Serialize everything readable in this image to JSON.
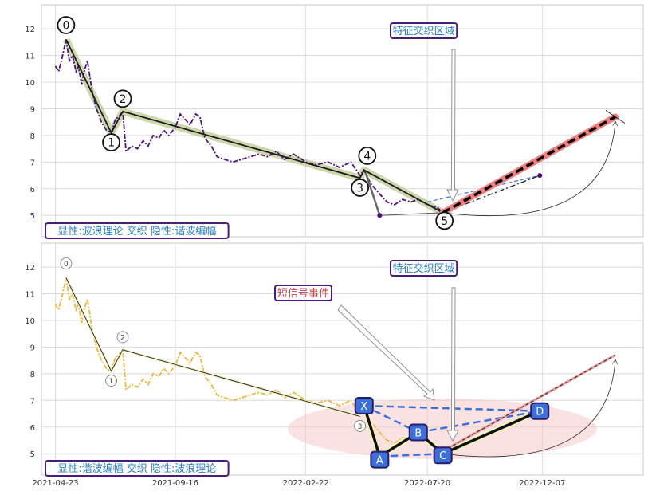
{
  "chart_data": [
    {
      "type": "line",
      "panel": "top",
      "x_ticks": [
        "2021-04-23",
        "2021-09-16",
        "2022-02-22",
        "2022-07-20",
        "2022-12-07"
      ],
      "y_ticks": [
        5,
        6,
        7,
        8,
        9,
        10,
        11,
        12
      ],
      "ylim": [
        4.2,
        12.9
      ],
      "xlim": [
        "2021-04-06",
        "2023-04-09"
      ],
      "grid": true,
      "label_box": "显性:波浪理论 交织 隐性:谐波编幅",
      "annotation": "特征交织区域",
      "wave_points": [
        {
          "label": "0",
          "date": "2021-05-06",
          "value": 11.6
        },
        {
          "label": "1",
          "date": "2021-06-30",
          "value": 8.1
        },
        {
          "label": "2",
          "date": "2021-07-14",
          "value": 8.9
        },
        {
          "label": "3",
          "date": "2022-04-29",
          "value": 6.4
        },
        {
          "label": "4",
          "date": "2022-05-04",
          "value": 6.7
        },
        {
          "label": "5",
          "date": "2022-08-08",
          "value": 5.1
        }
      ],
      "projection": {
        "from_date": "2022-08-08",
        "from_value": 5.1,
        "to_date": "2023-03-06",
        "to_value": 8.7
      },
      "alt_path": [
        {
          "date": "2022-05-06",
          "value": 6.6
        },
        {
          "date": "2022-05-23",
          "value": 5.0
        },
        {
          "date": "2022-07-20",
          "value": 5.5
        },
        {
          "date": "2022-12-04",
          "value": 6.5
        }
      ],
      "price_series": [
        [
          "2021-04-23",
          10.6
        ],
        [
          "2021-04-27",
          10.4
        ],
        [
          "2021-05-01",
          10.9
        ],
        [
          "2021-05-06",
          11.6
        ],
        [
          "2021-05-10",
          10.8
        ],
        [
          "2021-05-14",
          11.0
        ],
        [
          "2021-05-18",
          10.4
        ],
        [
          "2021-05-21",
          10.6
        ],
        [
          "2021-05-25",
          9.9
        ],
        [
          "2021-05-28",
          10.4
        ],
        [
          "2021-06-01",
          10.8
        ],
        [
          "2021-06-07",
          9.6
        ],
        [
          "2021-06-12",
          9.0
        ],
        [
          "2021-06-18",
          8.5
        ],
        [
          "2021-06-24",
          8.2
        ],
        [
          "2021-06-30",
          8.1
        ],
        [
          "2021-07-05",
          8.6
        ],
        [
          "2021-07-09",
          8.7
        ],
        [
          "2021-07-14",
          8.9
        ],
        [
          "2021-07-18",
          7.4
        ],
        [
          "2021-07-25",
          7.6
        ],
        [
          "2021-08-01",
          7.5
        ],
        [
          "2021-08-08",
          7.8
        ],
        [
          "2021-08-14",
          7.6
        ],
        [
          "2021-08-20",
          8.0
        ],
        [
          "2021-08-27",
          7.9
        ],
        [
          "2021-09-02",
          8.2
        ],
        [
          "2021-09-08",
          8.0
        ],
        [
          "2021-09-16",
          8.3
        ],
        [
          "2021-09-22",
          8.8
        ],
        [
          "2021-09-28",
          8.6
        ],
        [
          "2021-10-04",
          8.4
        ],
        [
          "2021-10-11",
          8.8
        ],
        [
          "2021-10-16",
          8.7
        ],
        [
          "2021-10-22",
          7.9
        ],
        [
          "2021-10-30",
          7.6
        ],
        [
          "2021-11-06",
          7.2
        ],
        [
          "2021-11-15",
          7.1
        ],
        [
          "2021-11-25",
          7.0
        ],
        [
          "2021-12-06",
          7.1
        ],
        [
          "2021-12-16",
          7.2
        ],
        [
          "2021-12-27",
          7.3
        ],
        [
          "2022-01-06",
          7.2
        ],
        [
          "2022-01-17",
          7.4
        ],
        [
          "2022-01-27",
          7.1
        ],
        [
          "2022-02-07",
          7.3
        ],
        [
          "2022-02-22",
          7.0
        ],
        [
          "2022-03-07",
          6.9
        ],
        [
          "2022-03-21",
          7.0
        ],
        [
          "2022-04-04",
          6.8
        ],
        [
          "2022-04-18",
          7.0
        ],
        [
          "2022-04-29",
          6.5
        ],
        [
          "2022-05-04",
          6.7
        ],
        [
          "2022-05-12",
          6.2
        ],
        [
          "2022-05-23",
          5.8
        ],
        [
          "2022-06-01",
          5.5
        ],
        [
          "2022-06-10",
          5.4
        ],
        [
          "2022-06-20",
          5.6
        ],
        [
          "2022-06-30",
          5.5
        ],
        [
          "2022-07-09",
          5.6
        ],
        [
          "2022-07-20",
          5.4
        ],
        [
          "2022-08-01",
          5.3
        ],
        [
          "2022-08-08",
          5.1
        ]
      ]
    },
    {
      "type": "line",
      "panel": "bottom",
      "x_ticks": [
        "2021-04-23",
        "2021-09-16",
        "2022-02-22",
        "2022-07-20",
        "2022-12-07"
      ],
      "y_ticks": [
        5,
        6,
        7,
        8,
        9,
        10,
        11,
        12
      ],
      "ylim": [
        4.2,
        12.9
      ],
      "xlim": [
        "2021-04-06",
        "2023-04-09"
      ],
      "grid": true,
      "label_box": "显性:谐波编幅 交织 隐性:波浪理论",
      "annotation": "特征交织区域",
      "annotation2": "短信号事件",
      "harmonic_points": [
        {
          "label": "X",
          "date": "2022-05-04",
          "value": 6.8
        },
        {
          "label": "A",
          "date": "2022-05-23",
          "value": 4.9
        },
        {
          "label": "B",
          "date": "2022-07-09",
          "value": 5.8
        },
        {
          "label": "C",
          "date": "2022-08-08",
          "value": 5.0
        },
        {
          "label": "D",
          "date": "2022-12-04",
          "value": 6.6
        }
      ],
      "wave_labels": [
        "0",
        "1",
        "2",
        "3"
      ],
      "wave_points": [
        {
          "label": "0",
          "date": "2021-05-06",
          "value": 11.6
        },
        {
          "label": "1",
          "date": "2021-06-30",
          "value": 8.1
        },
        {
          "label": "2",
          "date": "2021-07-14",
          "value": 8.9
        },
        {
          "label": "3",
          "date": "2022-04-29",
          "value": 6.4
        }
      ]
    }
  ]
}
